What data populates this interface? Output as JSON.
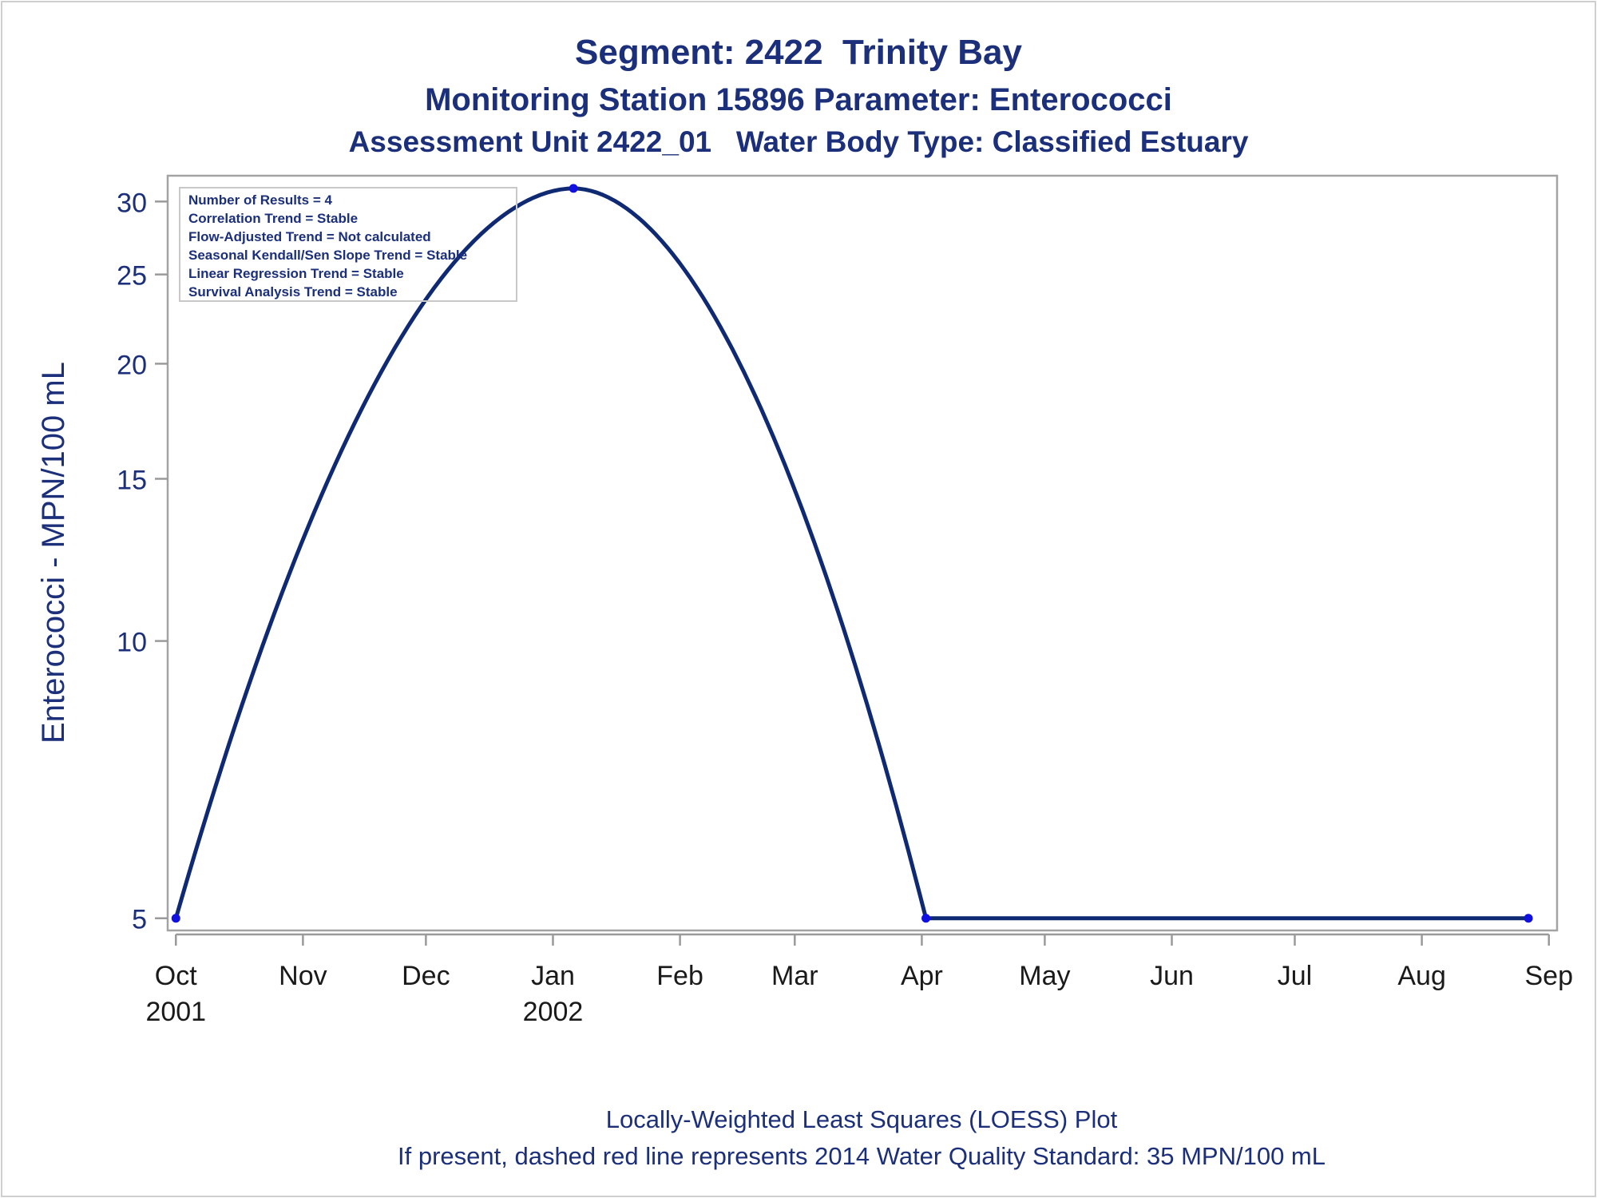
{
  "chart_data": {
    "type": "line",
    "title": "Segment: 2422  Trinity Bay",
    "subtitle_1": "Monitoring Station 15896 Parameter: Enterococci",
    "subtitle_2": "Assessment Unit 2422_01   Water Body Type: Classified Estuary",
    "ylabel": "Enterococci - MPN/100 mL",
    "xlabel": "",
    "y_scale": "log",
    "ylim": [
      4.85,
      32.0
    ],
    "xlim": [
      "2001-09-29",
      "2002-09-03"
    ],
    "y_ticks": [
      5,
      10,
      15,
      20,
      25,
      30
    ],
    "x_ticks": [
      {
        "date": "2001-10-01",
        "label": "Oct",
        "year": "2001"
      },
      {
        "date": "2001-11-01",
        "label": "Nov",
        "year": ""
      },
      {
        "date": "2001-12-01",
        "label": "Dec",
        "year": ""
      },
      {
        "date": "2002-01-01",
        "label": "Jan",
        "year": "2002"
      },
      {
        "date": "2002-02-01",
        "label": "Feb",
        "year": ""
      },
      {
        "date": "2002-03-01",
        "label": "Mar",
        "year": ""
      },
      {
        "date": "2002-04-01",
        "label": "Apr",
        "year": ""
      },
      {
        "date": "2002-05-01",
        "label": "May",
        "year": ""
      },
      {
        "date": "2002-06-01",
        "label": "Jun",
        "year": ""
      },
      {
        "date": "2002-07-01",
        "label": "Jul",
        "year": ""
      },
      {
        "date": "2002-08-01",
        "label": "Aug",
        "year": ""
      },
      {
        "date": "2002-09-01",
        "label": "Sep",
        "year": ""
      }
    ],
    "points": [
      {
        "x": "2001-10-01",
        "y": 5
      },
      {
        "x": "2002-01-06",
        "y": 31
      },
      {
        "x": "2002-04-02",
        "y": 5
      },
      {
        "x": "2002-08-27",
        "y": 5
      }
    ],
    "grid": false,
    "stats_box": [
      "Number of Results = 4",
      "Correlation Trend = Stable",
      "Flow-Adjusted Trend = Not calculated",
      "Seasonal Kendall/Sen Slope Trend = Stable",
      "Linear Regression Trend = Stable",
      "Survival Analysis Trend = Stable"
    ],
    "footnote_1": "Locally-Weighted Least Squares (LOESS) Plot",
    "footnote_2": "If present, dashed red line represents 2014 Water Quality Standard: 35 MPN/100 mL",
    "colors": {
      "title": "#1b2f7a",
      "line": "#0f2a73",
      "marker": "#1010e0",
      "axis": "#9a9a9a",
      "tick_label_y": "#1b2f7a",
      "tick_label_x": "#1a1a1a"
    }
  }
}
